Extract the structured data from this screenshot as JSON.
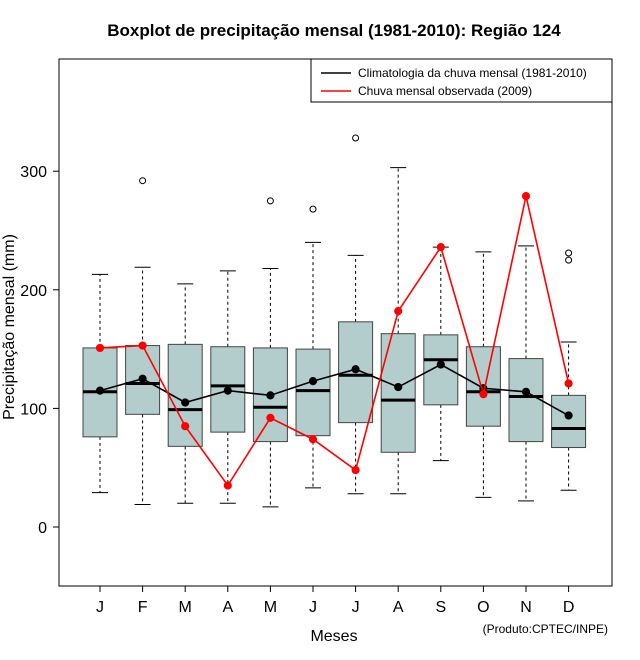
{
  "chart_data": {
    "type": "boxplot",
    "title": "Boxplot de precipitação mensal (1981-2010): Região 124",
    "xlabel": "Meses",
    "ylabel": "Precipitação mensal (mm)",
    "credit": "(Produto:CPTEC/INPE)",
    "categories": [
      "J",
      "F",
      "M",
      "A",
      "M",
      "J",
      "J",
      "A",
      "S",
      "O",
      "N",
      "D"
    ],
    "ylim": [
      -50,
      395
    ],
    "yticks": [
      0,
      100,
      200,
      300
    ],
    "ytick_labels": [
      "0",
      "100",
      "200",
      "300"
    ],
    "box_color": "#b3cccc",
    "boxes": [
      {
        "whisker_low": 29,
        "q1": 76,
        "median": 114,
        "q3": 151,
        "whisker_high": 213,
        "outliers": []
      },
      {
        "whisker_low": 19,
        "q1": 95,
        "median": 121,
        "q3": 153,
        "whisker_high": 219,
        "outliers": [
          292
        ]
      },
      {
        "whisker_low": 20,
        "q1": 68,
        "median": 99,
        "q3": 154,
        "whisker_high": 205,
        "outliers": []
      },
      {
        "whisker_low": 20,
        "q1": 80,
        "median": 119,
        "q3": 152,
        "whisker_high": 216,
        "outliers": []
      },
      {
        "whisker_low": 17,
        "q1": 72,
        "median": 101,
        "q3": 151,
        "whisker_high": 218,
        "outliers": [
          275
        ]
      },
      {
        "whisker_low": 33,
        "q1": 77,
        "median": 115,
        "q3": 150,
        "whisker_high": 240,
        "outliers": [
          268
        ]
      },
      {
        "whisker_low": 28,
        "q1": 88,
        "median": 128,
        "q3": 173,
        "whisker_high": 229,
        "outliers": [
          328
        ]
      },
      {
        "whisker_low": 28,
        "q1": 63,
        "median": 107,
        "q3": 163,
        "whisker_high": 303,
        "outliers": []
      },
      {
        "whisker_low": 56,
        "q1": 103,
        "median": 141,
        "q3": 162,
        "whisker_high": 236,
        "outliers": []
      },
      {
        "whisker_low": 25,
        "q1": 85,
        "median": 114,
        "q3": 152,
        "whisker_high": 232,
        "outliers": []
      },
      {
        "whisker_low": 22,
        "q1": 72,
        "median": 110,
        "q3": 142,
        "whisker_high": 237,
        "outliers": []
      },
      {
        "whisker_low": 31,
        "q1": 67,
        "median": 83,
        "q3": 111,
        "whisker_high": 156,
        "outliers": [
          225,
          231
        ]
      }
    ],
    "series": [
      {
        "name": "Climatologia da chuva mensal (1981-2010)",
        "color": "#000000",
        "values": [
          115,
          125,
          105,
          115,
          111,
          123,
          133,
          118,
          137,
          117,
          114,
          94
        ]
      },
      {
        "name": "Chuva mensal observada (2009)",
        "color": "#ff0000",
        "values": [
          151,
          153,
          85,
          35,
          92,
          74,
          48,
          182,
          236,
          112,
          279,
          121
        ]
      }
    ],
    "legend_position": "top-right",
    "grid": false
  }
}
